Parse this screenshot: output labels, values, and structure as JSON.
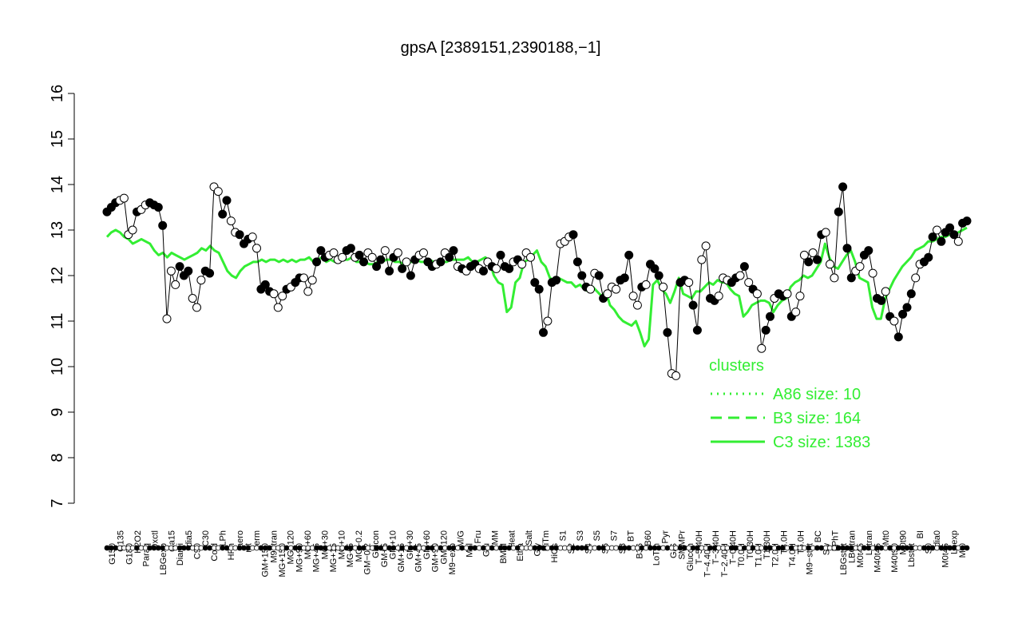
{
  "chart_data": {
    "type": "line",
    "title": "gpsA [2389151,2390188,−1]",
    "xlabel": "",
    "ylabel": "",
    "ylim": [
      7,
      16
    ],
    "yticks": [
      "7",
      "8",
      "9",
      "10",
      "11",
      "12",
      "13",
      "14",
      "15",
      "16"
    ],
    "grid": false,
    "legend": {
      "position": "right",
      "title": "clusters",
      "entries": [
        {
          "label": "A86 size: 10",
          "style": "dotted",
          "color": "#33ee33"
        },
        {
          "label": "B3 size: 164",
          "style": "dashed",
          "color": "#33ee33"
        },
        {
          "label": "C3 size: 1383",
          "style": "solid",
          "color": "#33ee33"
        }
      ]
    },
    "x_labels_row1": [
      "G150",
      "G135",
      "G180",
      "H2O2",
      "Paraq",
      "Oxctl",
      "LBGexp",
      "dia15",
      "Diami",
      "dia5",
      "C90",
      "C30",
      "Cold",
      "LPh",
      "HPh",
      "aero",
      "nit",
      "ferm",
      "GM+150",
      "M9−tran",
      "MG+150",
      "MG+120",
      "MG+90",
      "MG+60",
      "MG+45",
      "MG+30",
      "MG+15",
      "MG+10",
      "MG+5",
      "MG−0.2",
      "GM−0.2",
      "Glucon",
      "GM+5",
      "GM+10",
      "GM+15",
      "GM+30",
      "GM+45",
      "GM+60",
      "GM+90",
      "GM+120",
      "M9−exp",
      "M/G",
      "Mal",
      "Fru",
      "Glu",
      "SMM",
      "BMM",
      "Heat",
      "Etha",
      "Salt",
      "Gly",
      "HiTm",
      "HiOs",
      "S1",
      "S2",
      "S3",
      "S4",
      "S5",
      "S6",
      "S7",
      "S8",
      "BT",
      "B36",
      "B60",
      "LoTm",
      "Pyr",
      "G/S",
      "SMMPr",
      "Glucon",
      "T−5.40H",
      "T−4.40H",
      "T−3.40H",
      "T−2.40H",
      "T−0.40H",
      "T0.0H",
      "T0.30H",
      "T1.0H",
      "T1.30H",
      "T2.0H",
      "T3.0H",
      "T4.0H",
      "T5.0H",
      "M9−stat",
      "BC",
      "Sw",
      "LPhT",
      "LBGstat",
      "LBGtran",
      "M0t45",
      "Lbtran",
      "M40t45",
      "Mt0",
      "M40t90",
      "M0t90",
      "Lbstat",
      "BI",
      "S0",
      "dia0",
      "M0t45",
      "Lbexp",
      "Mt0"
    ],
    "series": [
      {
        "values": [
          13.4,
          13.5,
          13.6,
          13.65,
          13.7,
          12.9,
          13.0,
          13.4,
          13.45,
          13.55,
          13.6,
          13.55,
          13.5,
          13.1,
          11.05,
          12.1,
          11.8,
          12.2,
          12.0,
          12.1,
          11.5,
          11.3,
          11.9,
          12.1,
          12.05,
          13.95,
          13.85,
          13.35,
          13.65,
          13.2,
          12.95,
          12.9,
          12.7,
          12.8,
          12.85,
          12.6,
          11.7,
          11.8,
          11.65,
          11.6,
          11.3,
          11.55,
          11.7,
          11.75,
          11.85,
          11.95,
          11.95,
          11.65,
          11.9,
          12.3,
          12.55,
          12.4,
          12.45,
          12.5,
          12.35,
          12.4,
          12.55,
          12.6,
          12.4,
          12.45,
          12.3,
          12.5,
          12.4,
          12.2,
          12.35,
          12.55,
          12.1,
          12.4,
          12.5,
          12.15,
          12.3,
          12.0,
          12.35,
          12.45,
          12.5,
          12.3,
          12.2,
          12.25,
          12.3,
          12.5,
          12.4,
          12.55,
          12.2,
          12.15,
          12.1,
          12.2,
          12.25,
          12.15,
          12.1,
          12.3,
          12.2,
          12.15,
          12.45,
          12.2,
          12.15,
          12.3,
          12.35,
          12.25,
          12.5,
          12.4,
          11.85,
          11.7,
          10.75,
          11.0,
          11.85,
          11.9,
          12.7,
          12.75,
          12.85,
          12.9,
          12.3,
          12.0,
          11.75,
          11.7,
          12.05,
          12.0,
          11.5,
          11.6,
          11.75,
          11.7,
          11.9,
          11.95,
          12.45,
          11.55,
          11.35,
          11.75,
          11.8,
          12.25,
          12.15,
          12.0,
          11.75,
          10.75,
          9.85,
          9.8,
          11.85,
          11.9,
          11.85,
          11.35,
          10.8,
          12.35,
          12.65,
          11.5,
          11.45,
          11.55,
          11.95,
          11.9,
          11.85,
          11.95,
          12.0,
          12.2,
          11.85,
          11.7,
          11.6,
          10.4,
          10.8,
          11.1,
          11.5,
          11.6,
          11.55,
          11.6,
          11.1,
          11.2,
          11.55,
          12.45,
          12.3,
          12.5,
          12.35,
          12.9,
          12.95,
          12.25,
          11.95,
          13.4,
          13.95,
          12.6,
          11.95,
          12.1,
          12.2,
          12.45,
          12.55,
          12.05,
          11.5,
          11.45,
          11.65,
          11.1,
          11.0,
          10.65,
          11.15,
          11.3,
          11.6,
          11.95,
          12.25,
          12.3,
          12.4,
          12.85,
          13.0,
          12.75,
          12.95,
          13.05,
          12.9,
          12.75,
          13.15,
          13.2
        ],
        "filled": [
          1,
          1,
          1,
          0,
          0,
          0,
          0,
          1,
          0,
          0,
          1,
          1,
          1,
          1,
          0,
          0,
          0,
          1,
          1,
          1,
          0,
          0,
          0,
          1,
          1,
          0,
          0,
          1,
          1,
          0,
          0,
          1,
          1,
          1,
          0,
          0,
          1,
          1,
          1,
          0,
          0,
          0,
          1,
          0,
          1,
          1,
          0,
          0,
          0,
          1,
          1,
          1,
          0,
          0,
          0,
          0,
          1,
          1,
          0,
          1,
          1,
          0,
          0,
          1,
          1,
          0,
          1,
          1,
          0,
          1,
          0,
          1,
          1,
          0,
          0,
          1,
          1,
          0,
          1,
          0,
          1,
          1,
          0,
          1,
          0,
          1,
          1,
          0,
          1,
          0,
          1,
          0,
          1,
          1,
          1,
          0,
          1,
          0,
          0,
          0,
          1,
          1,
          1,
          0,
          1,
          1,
          0,
          0,
          0,
          1,
          1,
          1,
          1,
          0,
          0,
          1,
          1,
          0,
          0,
          0,
          1,
          1,
          1,
          0,
          0,
          1,
          0,
          1,
          1,
          1,
          0,
          1,
          0,
          0,
          1,
          1,
          0,
          1,
          1,
          0,
          0,
          1,
          1,
          0,
          0,
          0,
          1,
          1,
          0,
          1,
          0,
          1,
          0,
          0,
          1,
          1,
          0,
          1,
          1,
          0,
          1,
          0,
          0,
          0,
          1,
          0,
          1,
          1,
          0,
          0,
          0,
          1,
          1,
          1,
          1,
          0,
          0,
          1,
          1,
          0,
          1,
          1,
          0,
          1,
          0,
          1,
          1,
          1,
          1,
          0,
          0,
          1,
          1,
          1,
          0,
          1,
          1,
          1,
          1,
          0,
          1,
          1,
          1
        ]
      },
      {
        "name": "C3 size: 1383",
        "style": "solid",
        "values": [
          12.85,
          12.95,
          13.0,
          12.95,
          12.85,
          12.8,
          12.7,
          12.75,
          12.8,
          12.75,
          12.7,
          12.55,
          12.45,
          12.5,
          12.4,
          12.5,
          12.45,
          12.4,
          12.35,
          12.4,
          12.45,
          12.5,
          12.6,
          12.55,
          12.65,
          12.55,
          12.5,
          12.3,
          12.1,
          12.0,
          11.95,
          12.1,
          12.2,
          12.25,
          12.3,
          12.3,
          12.35,
          12.3,
          12.35,
          12.35,
          12.3,
          12.35,
          12.3,
          12.35,
          12.3,
          12.35,
          12.35,
          12.4,
          12.3,
          12.35,
          12.4,
          12.3,
          12.35,
          12.3,
          12.3,
          12.35,
          12.35,
          12.4,
          12.3,
          12.3,
          12.3,
          12.25,
          12.25,
          12.3,
          12.3,
          12.35,
          12.35,
          12.3,
          12.3,
          12.25,
          12.3,
          12.3,
          12.35,
          12.3,
          12.3,
          12.35,
          12.3,
          12.3,
          12.3,
          12.3,
          12.35,
          12.35,
          12.35,
          12.35,
          12.4,
          12.3,
          12.3,
          12.35,
          12.4,
          12.3,
          12.0,
          11.85,
          11.8,
          11.2,
          11.3,
          11.85,
          11.95,
          12.3,
          12.35,
          12.45,
          12.55,
          12.3,
          12.2,
          11.95,
          11.9,
          11.95,
          11.9,
          11.85,
          11.85,
          11.75,
          11.8,
          11.7,
          11.65,
          11.75,
          11.65,
          11.55,
          11.65,
          11.35,
          11.25,
          11.1,
          11.0,
          10.95,
          10.9,
          11.0,
          10.75,
          10.45,
          10.6,
          11.8,
          11.9,
          11.7,
          11.6,
          11.4,
          11.65,
          11.95,
          11.6,
          11.55,
          11.5,
          11.65,
          11.65,
          11.75,
          11.85,
          11.8,
          11.9,
          11.85,
          11.85,
          11.7,
          11.6,
          11.55,
          11.1,
          11.2,
          11.35,
          11.4,
          11.45,
          11.45,
          11.4,
          11.2,
          11.35,
          11.45,
          11.5,
          11.75,
          11.85,
          11.9,
          12.0,
          11.95,
          12.0,
          12.15,
          12.3,
          12.7,
          12.4,
          12.2,
          12.15,
          12.3,
          12.45,
          12.55,
          12.3,
          11.95,
          11.9,
          11.85,
          11.3,
          11.05,
          11.05,
          11.5,
          11.7,
          11.9,
          12.05,
          12.2,
          12.3,
          12.4,
          12.55,
          12.6,
          12.65,
          12.75,
          12.75,
          12.8,
          12.85,
          12.85,
          12.9,
          12.9,
          12.95,
          13.0,
          13.05
        ]
      }
    ]
  },
  "credits": ""
}
